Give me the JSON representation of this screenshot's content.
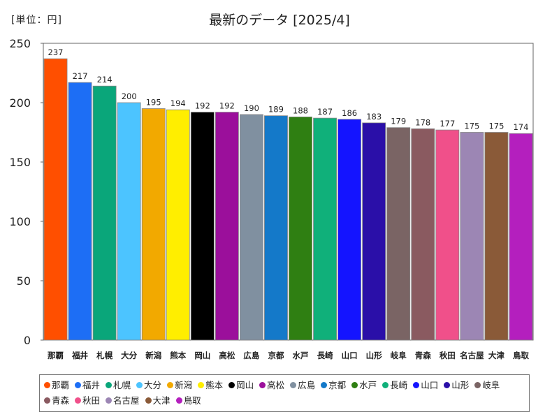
{
  "header": {
    "unit_label": "[単位：円]",
    "title": "最新のデータ [2025/4]"
  },
  "chart_data": {
    "type": "bar",
    "categories": [
      "那覇",
      "福井",
      "札幌",
      "大分",
      "新潟",
      "熊本",
      "岡山",
      "高松",
      "広島",
      "京都",
      "水戸",
      "長崎",
      "山口",
      "山形",
      "岐阜",
      "青森",
      "秋田",
      "名古屋",
      "大津",
      "鳥取"
    ],
    "values": [
      237,
      217,
      214,
      200,
      195,
      194,
      192,
      192,
      190,
      189,
      188,
      187,
      186,
      183,
      179,
      178,
      177,
      175,
      175,
      174
    ],
    "colors": [
      "#ff4f00",
      "#1d6ef5",
      "#0aa67a",
      "#4cc4ff",
      "#f2a900",
      "#ffee00",
      "#000000",
      "#9b0f9b",
      "#8090a0",
      "#1479c9",
      "#2f7f12",
      "#10b07a",
      "#1414ff",
      "#2a0fa8",
      "#7a6464",
      "#8a5a60",
      "#f0508a",
      "#9c86b4",
      "#8a5a38",
      "#b41fbe"
    ],
    "yticks": [
      0,
      50,
      100,
      150,
      200,
      250
    ],
    "ylim": [
      0,
      250
    ],
    "grid": false,
    "legend_position": "bottom"
  }
}
